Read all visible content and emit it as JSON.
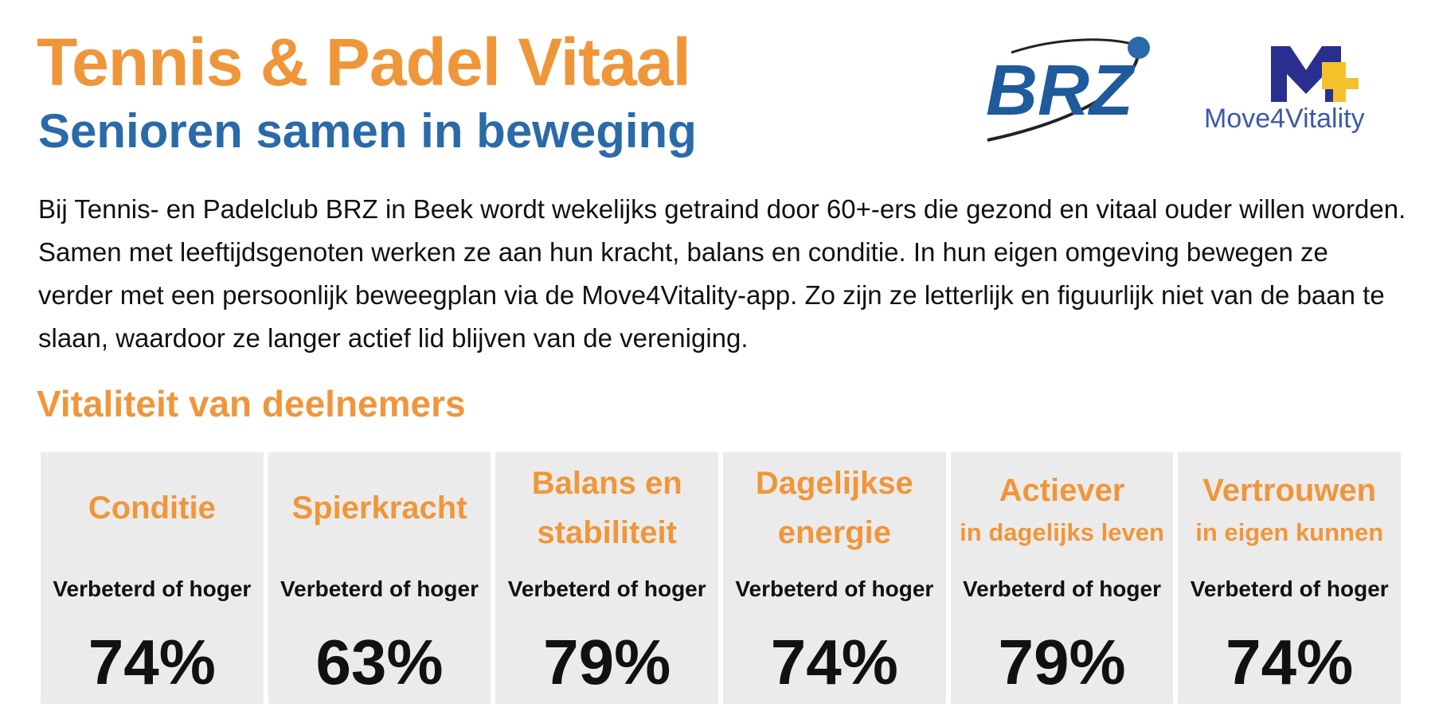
{
  "header": {
    "title": "Tennis & Padel Vitaal",
    "subtitle": "Senioren samen in beweging"
  },
  "logos": {
    "brz": "BRZ",
    "move4vitality": "Move4Vitality"
  },
  "intro": "Bij Tennis- en Padelclub BRZ in Beek wordt wekelijks getraind door 60+-ers die gezond en vitaal ouder willen worden. Samen met leeftijdsgenoten werken ze aan hun kracht, balans en conditie. In hun eigen omgeving bewegen ze verder met een persoonlijk beweegplan via de Move4Vitality-app. Zo zijn ze letterlijk en figuurlijk niet van de baan te slaan, waardoor ze langer actief lid blijven van de vereniging.",
  "section_title": "Vitaliteit van deelnemers",
  "cards": [
    {
      "title": "Conditie",
      "label": "Verbeterd of hoger",
      "value": "74%"
    },
    {
      "title": "Spierkracht",
      "label": "Verbeterd of hoger",
      "value": "63%"
    },
    {
      "title": "Balans en stabiliteit",
      "label": "Verbeterd of hoger",
      "value": "79%"
    },
    {
      "title": "Dagelijkse energie",
      "label": "Verbeterd of hoger",
      "value": "74%"
    },
    {
      "title": "Actiever",
      "subtitle": "in dagelijks leven",
      "label": "Verbeterd of hoger",
      "value": "79%"
    },
    {
      "title": "Vertrouwen",
      "subtitle": "in eigen kunnen",
      "label": "Verbeterd of hoger",
      "value": "74%"
    }
  ]
}
